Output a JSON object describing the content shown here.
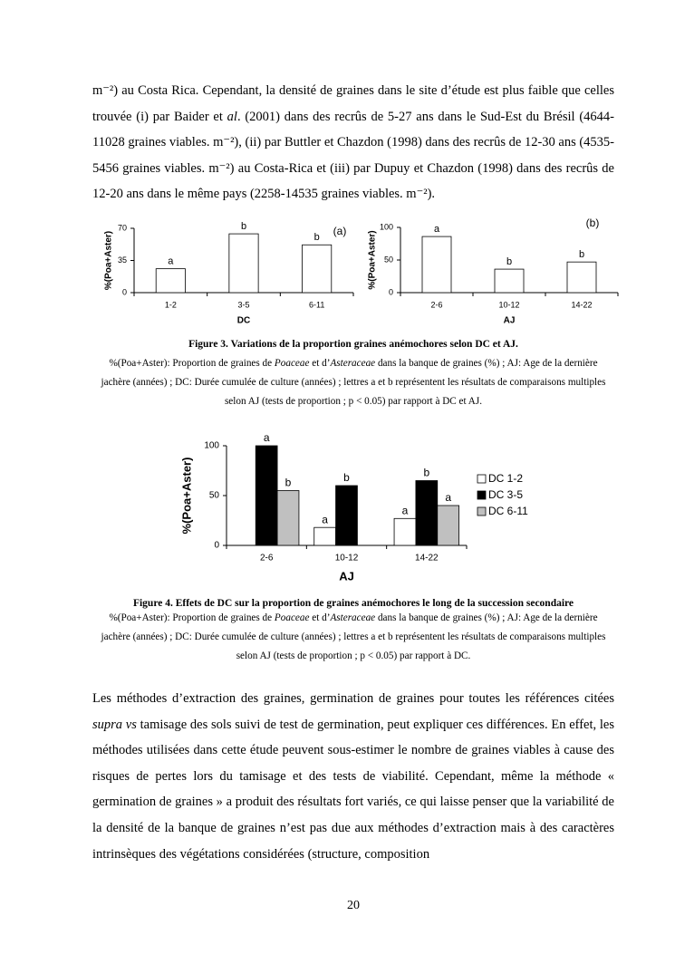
{
  "paragraph_1": {
    "runs": [
      "m⁻²) au Costa Rica. Cependant, la densité de graines dans le site d’étude est plus faible que celles trouvée (i) par Baider et ",
      "al",
      ". (2001) dans des recrûs de 5-27 ans dans le Sud-Est du Brésil (4644-11028 graines viables. m⁻²), (ii) par Buttler et Chazdon (1998) dans des recrûs de 12-30 ans (4535-5456 graines viables. m⁻²) au Costa-Rica et (iii) par Dupuy et Chazdon (1998) dans des recrûs de 12-20 ans dans le même pays (2258-14535 graines viables. m⁻²)."
    ]
  },
  "figure_3": {
    "caption": "Figure 3. Variations de la proportion graines anémochores selon DC et AJ.",
    "note": {
      "runs": [
        "%(Poa+Aster): Proportion de graines de ",
        "Poaceae",
        " et d’",
        "Asteraceae",
        " dans la banque de graines (%) ; AJ: Age de la dernière jachère (années) ; DC: Durée cumulée de culture (années) ; lettres a et b représentent les résultats de comparaisons multiples selon AJ (tests de proportion ; p < 0.05) par rapport à DC et AJ."
      ]
    }
  },
  "figure_4": {
    "caption": "Figure 4. Effets de DC sur la proportion de graines anémochores le long de la succession secondaire",
    "note": {
      "runs": [
        "%(Poa+Aster): Proportion de graines de ",
        "Poaceae",
        " et d’",
        "Asteraceae",
        " dans la banque de graines (%) ; AJ: Age de la dernière jachère (années) ; DC: Durée cumulée de culture (années) ; lettres a et b représentent les résultats de comparaisons multiples selon AJ (tests de proportion ; p < 0.05) par rapport à DC."
      ]
    }
  },
  "paragraph_2": {
    "runs": [
      "Les méthodes d’extraction des graines, germination de graines pour toutes les références citées ",
      "supra vs",
      " tamisage des sols suivi de test de germination, peut expliquer ces différences. En effet, les méthodes utilisées dans cette étude peuvent sous-estimer le nombre de graines viables à cause des risques de pertes lors du tamisage et des tests de viabilité. Cependant, même la méthode « germination de graines » a produit des résultats fort variés, ce qui laisse penser que la variabilité de la densité de la banque de graines n’est pas due aux méthodes d’extraction mais à des caractères intrinsèques des végétations considérées (structure, composition"
    ]
  },
  "page_number": "20",
  "chart_data": [
    {
      "type": "bar",
      "panel_label": "(a)",
      "y_label": "%(Poa+Aster)",
      "x_label": "DC",
      "categories": [
        "1-2",
        "3-5",
        "6-11"
      ],
      "values": [
        26,
        64,
        52
      ],
      "letters": [
        "a",
        "b",
        "b"
      ],
      "color": "#ffffff",
      "ylim": [
        0,
        70
      ],
      "yticks": [
        0,
        35,
        70
      ]
    },
    {
      "type": "bar",
      "panel_label": "(b)",
      "y_label": "%(Poa+Aster)",
      "x_label": "AJ",
      "categories": [
        "2-6",
        "10-12",
        "14-22"
      ],
      "values": [
        86,
        36,
        47
      ],
      "letters": [
        "a",
        "b",
        "b"
      ],
      "color": "#ffffff",
      "ylim": [
        0,
        100
      ],
      "yticks": [
        0,
        50,
        100
      ]
    },
    {
      "type": "bar",
      "y_label": "%(Poa+Aster)",
      "x_label": "AJ",
      "categories": [
        "2-6",
        "10-12",
        "14-22"
      ],
      "series": [
        {
          "name": "DC 1-2",
          "color": "#ffffff",
          "values": [
            null,
            18,
            27
          ],
          "letters": [
            null,
            "a",
            "a"
          ]
        },
        {
          "name": "DC 3-5",
          "color": "#000000",
          "values": [
            100,
            60,
            65
          ],
          "letters": [
            "a",
            "b",
            "b"
          ]
        },
        {
          "name": "DC 6-11",
          "color": "#c0c0c0",
          "values": [
            55,
            null,
            40
          ],
          "letters": [
            "b",
            null,
            "a"
          ]
        }
      ],
      "legend": "right",
      "ylim": [
        0,
        100
      ],
      "yticks": [
        0,
        50,
        100
      ]
    }
  ]
}
